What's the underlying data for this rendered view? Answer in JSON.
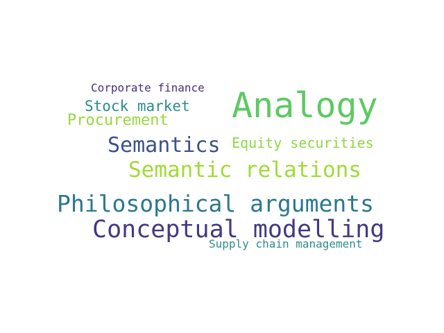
{
  "words": [
    {
      "text": "Analogy",
      "color": "#5ec962"
    },
    {
      "text": "Corporate finance",
      "color": "#472f7d"
    },
    {
      "text": "Stock market",
      "color": "#2c8c8c"
    },
    {
      "text": "Procurement",
      "color": "#97d83f"
    },
    {
      "text": "Semantics",
      "color": "#3b518b"
    },
    {
      "text": "Equity securities",
      "color": "#8fd744"
    },
    {
      "text": "Semantic relations",
      "color": "#a2da37"
    },
    {
      "text": "Philosophical arguments",
      "color": "#2a788e"
    },
    {
      "text": "Conceptual modelling",
      "color": "#443983"
    },
    {
      "text": "Supply chain management",
      "color": "#2e8c8a"
    }
  ]
}
